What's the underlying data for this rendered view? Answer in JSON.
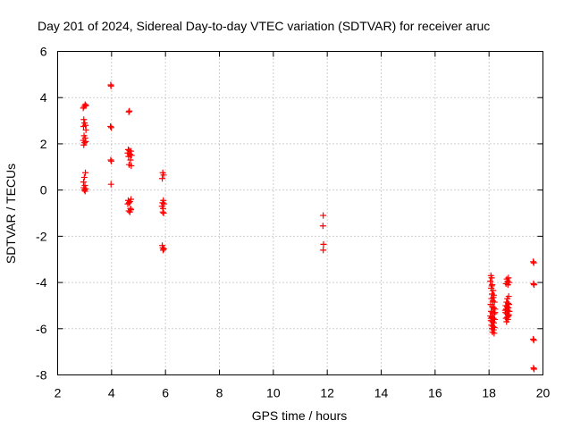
{
  "chart_data": {
    "type": "scatter",
    "title": "Day 201 of 2024, Sidereal Day-to-day VTEC variation (SDTVAR) for receiver aruc",
    "xlabel": "GPS time / hours",
    "ylabel": "SDTVAR / TECUs",
    "xlim": [
      2,
      20
    ],
    "ylim": [
      -8,
      6
    ],
    "xticks": [
      "2",
      "4",
      "6",
      "8",
      "10",
      "12",
      "14",
      "16",
      "18",
      "20"
    ],
    "yticks": [
      "6",
      "4",
      "2",
      "0",
      "-2",
      "-4",
      "-6",
      "-8"
    ],
    "grid": true,
    "marker": "+",
    "color": "#ff0000",
    "points": [
      [
        2.95,
        3.55
      ],
      [
        2.98,
        3.62
      ],
      [
        3.02,
        3.7
      ],
      [
        3.05,
        3.65
      ],
      [
        2.97,
        3.05
      ],
      [
        3.0,
        2.9
      ],
      [
        3.03,
        2.8
      ],
      [
        2.96,
        2.75
      ],
      [
        3.05,
        2.6
      ],
      [
        2.98,
        2.35
      ],
      [
        3.02,
        2.25
      ],
      [
        2.95,
        2.15
      ],
      [
        3.0,
        2.05
      ],
      [
        3.04,
        2.1
      ],
      [
        2.97,
        1.95
      ],
      [
        3.03,
        0.75
      ],
      [
        2.99,
        0.55
      ],
      [
        2.96,
        0.35
      ],
      [
        3.01,
        0.2
      ],
      [
        2.97,
        0.1
      ],
      [
        3.04,
        0.05
      ],
      [
        2.99,
        0.0
      ],
      [
        3.02,
        -0.05
      ],
      [
        3.97,
        4.55
      ],
      [
        3.98,
        4.5
      ],
      [
        3.96,
        2.75
      ],
      [
        3.99,
        2.7
      ],
      [
        3.97,
        1.3
      ],
      [
        3.99,
        1.25
      ],
      [
        3.98,
        0.25
      ],
      [
        4.66,
        3.42
      ],
      [
        4.64,
        3.38
      ],
      [
        4.62,
        1.75
      ],
      [
        4.66,
        1.7
      ],
      [
        4.72,
        1.68
      ],
      [
        4.6,
        1.6
      ],
      [
        4.68,
        1.55
      ],
      [
        4.74,
        1.5
      ],
      [
        4.63,
        1.45
      ],
      [
        4.7,
        1.3
      ],
      [
        4.65,
        1.1
      ],
      [
        4.73,
        1.05
      ],
      [
        4.62,
        -0.45
      ],
      [
        4.68,
        -0.5
      ],
      [
        4.72,
        -0.4
      ],
      [
        4.65,
        -0.55
      ],
      [
        4.6,
        -0.6
      ],
      [
        4.7,
        -0.8
      ],
      [
        4.64,
        -0.9
      ],
      [
        4.68,
        -0.95
      ],
      [
        4.72,
        -0.85
      ],
      [
        5.9,
        0.75
      ],
      [
        5.93,
        0.65
      ],
      [
        5.88,
        0.5
      ],
      [
        5.92,
        -0.45
      ],
      [
        5.89,
        -0.55
      ],
      [
        5.94,
        -0.6
      ],
      [
        5.87,
        -0.7
      ],
      [
        5.91,
        -0.8
      ],
      [
        5.9,
        -0.95
      ],
      [
        5.93,
        -1.0
      ],
      [
        5.88,
        -2.4
      ],
      [
        5.9,
        -2.5
      ],
      [
        5.94,
        -2.55
      ],
      [
        5.91,
        -2.6
      ],
      [
        11.85,
        -1.1
      ],
      [
        11.84,
        -1.55
      ],
      [
        11.86,
        -2.35
      ],
      [
        11.85,
        -2.6
      ],
      [
        18.07,
        -3.7
      ],
      [
        18.1,
        -3.8
      ],
      [
        18.05,
        -3.95
      ],
      [
        18.12,
        -4.1
      ],
      [
        18.08,
        -4.25
      ],
      [
        18.15,
        -4.35
      ],
      [
        18.11,
        -4.5
      ],
      [
        18.18,
        -4.55
      ],
      [
        18.09,
        -4.7
      ],
      [
        18.14,
        -4.8
      ],
      [
        18.2,
        -4.85
      ],
      [
        18.06,
        -4.95
      ],
      [
        18.12,
        -5.05
      ],
      [
        18.17,
        -5.1
      ],
      [
        18.22,
        -5.15
      ],
      [
        18.08,
        -5.25
      ],
      [
        18.13,
        -5.3
      ],
      [
        18.19,
        -5.35
      ],
      [
        18.05,
        -5.45
      ],
      [
        18.11,
        -5.5
      ],
      [
        18.16,
        -5.55
      ],
      [
        18.21,
        -5.6
      ],
      [
        18.07,
        -5.65
      ],
      [
        18.13,
        -5.7
      ],
      [
        18.18,
        -5.75
      ],
      [
        18.09,
        -5.85
      ],
      [
        18.15,
        -5.9
      ],
      [
        18.2,
        -5.95
      ],
      [
        18.11,
        -6.0
      ],
      [
        18.17,
        -6.05
      ],
      [
        18.13,
        -6.15
      ],
      [
        18.19,
        -6.2
      ],
      [
        18.07,
        -5.55
      ],
      [
        18.22,
        -5.3
      ],
      [
        18.1,
        -4.15
      ],
      [
        18.16,
        -4.65
      ],
      [
        18.66,
        -3.85
      ],
      [
        18.72,
        -3.8
      ],
      [
        18.69,
        -3.95
      ],
      [
        18.75,
        -4.0
      ],
      [
        18.63,
        -4.05
      ],
      [
        18.7,
        -4.1
      ],
      [
        18.73,
        -4.6
      ],
      [
        18.68,
        -4.7
      ],
      [
        18.65,
        -4.85
      ],
      [
        18.71,
        -4.9
      ],
      [
        18.74,
        -4.95
      ],
      [
        18.62,
        -5.0
      ],
      [
        18.67,
        -5.05
      ],
      [
        18.72,
        -5.1
      ],
      [
        18.64,
        -5.15
      ],
      [
        18.69,
        -5.2
      ],
      [
        18.75,
        -5.25
      ],
      [
        18.61,
        -5.3
      ],
      [
        18.66,
        -5.35
      ],
      [
        18.73,
        -5.4
      ],
      [
        18.68,
        -5.5
      ],
      [
        18.63,
        -5.55
      ],
      [
        18.7,
        -5.6
      ],
      [
        18.65,
        -5.7
      ],
      [
        18.72,
        -5.45
      ],
      [
        18.6,
        -5.2
      ],
      [
        19.64,
        -3.1
      ],
      [
        19.66,
        -3.15
      ],
      [
        19.65,
        -4.05
      ],
      [
        19.67,
        -4.1
      ],
      [
        19.64,
        -6.45
      ],
      [
        19.66,
        -6.5
      ],
      [
        19.65,
        -7.7
      ],
      [
        19.67,
        -7.75
      ]
    ]
  }
}
